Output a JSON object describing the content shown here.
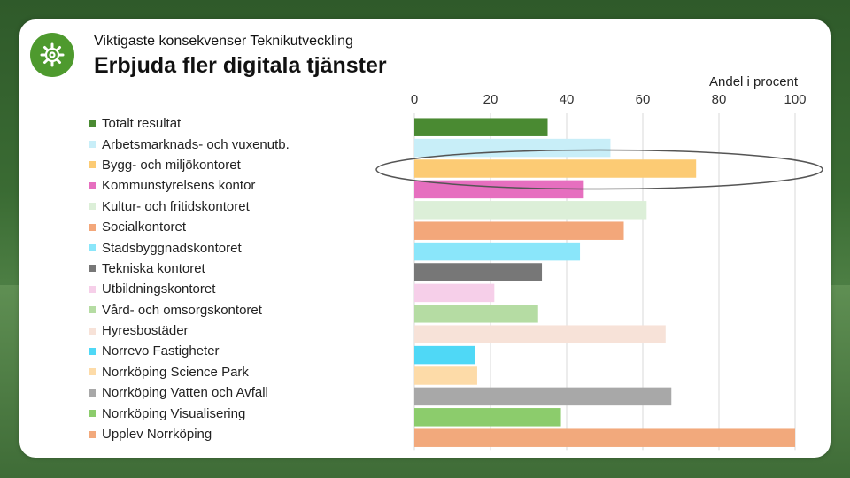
{
  "header": {
    "subtitle": "Viktigaste konsekvenser Teknikutveckling",
    "title": "Erbjuda fler digitala tjänster",
    "logo_icon": "gear-icon"
  },
  "chart_data": {
    "type": "bar",
    "orientation": "horizontal",
    "title": "Erbjuda fler digitala tjänster",
    "xlabel": "Andel i procent",
    "ylabel": "",
    "xlim": [
      0,
      100
    ],
    "ticks": [
      "0",
      "20",
      "40",
      "60",
      "80",
      "100"
    ],
    "tick_values": [
      0,
      20,
      40,
      60,
      80,
      100
    ],
    "grid": true,
    "legend_position": "left",
    "highlight": "Bygg- och miljökontoret",
    "categories": [
      "Totalt resultat",
      "Arbetsmarknads- och vuxenutb.",
      "Bygg- och miljökontoret",
      "Kommunstyrelsens kontor",
      "Kultur- och fritidskontoret",
      "Socialkontoret",
      "Stadsbyggnadskontoret",
      "Tekniska kontoret",
      "Utbildningskontoret",
      "Vård- och omsorgskontoret",
      "Hyresbostäder",
      "Norrevo Fastigheter",
      "Norrköping Science Park",
      "Norrköping Vatten och Avfall",
      "Norrköping Visualisering",
      "Upplev Norrköping"
    ],
    "values": [
      35,
      51.5,
      74,
      44.5,
      61,
      55,
      43.5,
      33.5,
      21,
      32.5,
      66,
      16,
      16.5,
      67.5,
      38.5,
      100
    ],
    "colors": [
      "#4a8a32",
      "#c8eef8",
      "#fccb74",
      "#e66fbf",
      "#dcefd8",
      "#f3a77a",
      "#8ae6fa",
      "#777777",
      "#f6cfe9",
      "#b5dca3",
      "#f7e2d8",
      "#4fd8f6",
      "#fddba8",
      "#a8a8a8",
      "#8ccc6c",
      "#f2a97c"
    ]
  }
}
